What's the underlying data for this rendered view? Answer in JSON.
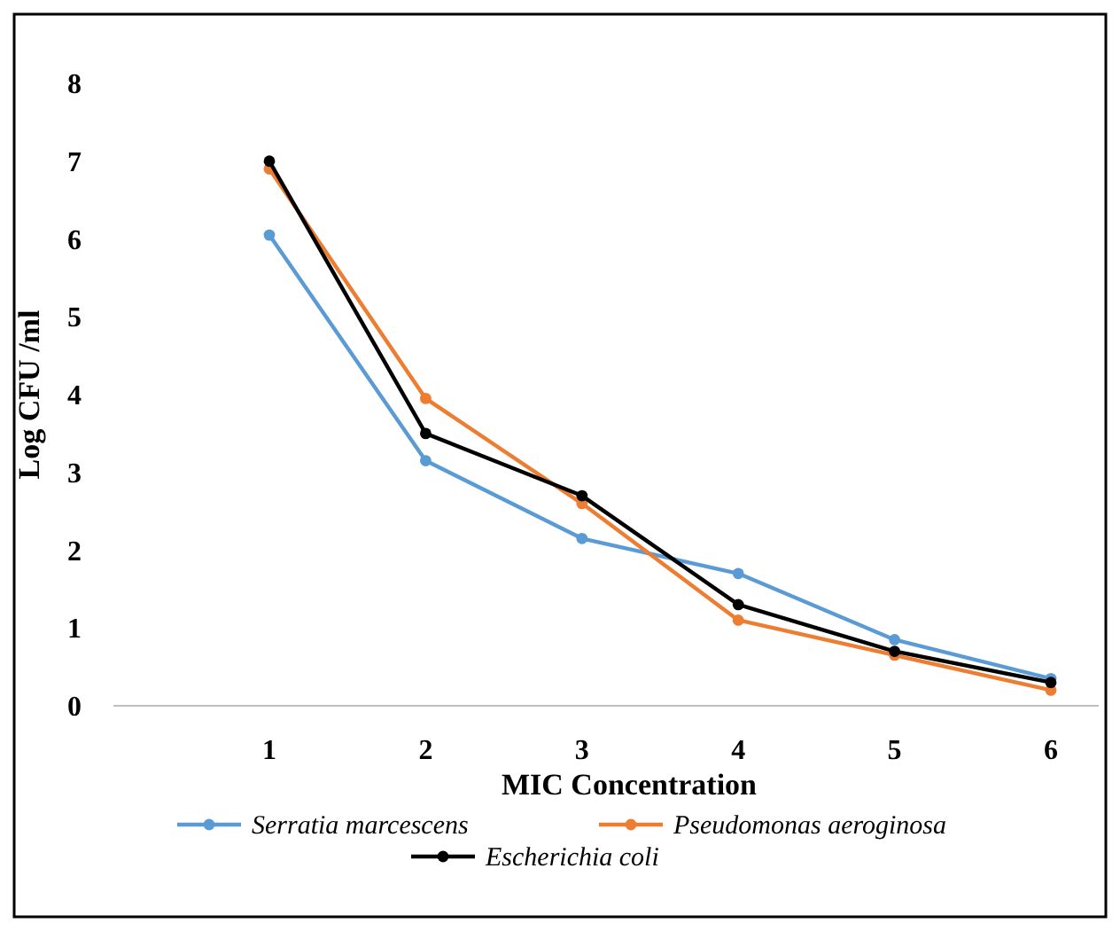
{
  "chart_data": {
    "type": "line",
    "xlabel": "MIC Concentration",
    "ylabel": "Log CFU /ml",
    "categories": [
      "1",
      "2",
      "3",
      "4",
      "5",
      "6"
    ],
    "series": [
      {
        "name": "Serratia marcescens",
        "color": "#5b9bd5",
        "values": [
          6.05,
          3.15,
          2.15,
          1.7,
          0.85,
          0.35
        ]
      },
      {
        "name": "Pseudomonas aeroginosa",
        "color": "#ed7d31",
        "values": [
          6.9,
          3.95,
          2.6,
          1.1,
          0.65,
          0.2
        ]
      },
      {
        "name": "Escherichia coli",
        "color": "#000000",
        "values": [
          7.0,
          3.5,
          2.7,
          1.3,
          0.7,
          0.3
        ]
      }
    ],
    "ylim": [
      0,
      8
    ],
    "yticks": [
      0,
      1,
      2,
      3,
      4,
      5,
      6,
      7,
      8
    ],
    "grid": false,
    "legend": "bottom",
    "marker": "circle",
    "line_style": "solid"
  }
}
